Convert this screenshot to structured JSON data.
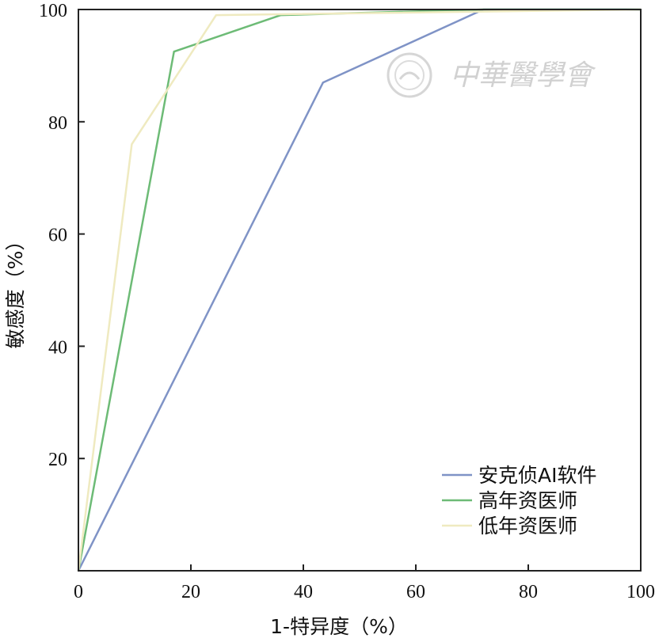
{
  "chart_data": {
    "type": "line",
    "xlabel": "1-特异度（%）",
    "ylabel": "敏感度（%）",
    "xlim": [
      0,
      100
    ],
    "ylim": [
      0,
      100
    ],
    "xticks": [
      "0",
      "20",
      "40",
      "60",
      "80",
      "100"
    ],
    "yticks": [
      "20",
      "40",
      "60",
      "80",
      "100"
    ],
    "grid": false,
    "legend_position": "bottom-right",
    "series": [
      {
        "name": "安克侦AI软件",
        "color": "#7f93c6",
        "x": [
          0,
          43.5,
          72,
          100
        ],
        "y": [
          0,
          87,
          100,
          100
        ]
      },
      {
        "name": "高年资医师",
        "color": "#6dbb76",
        "x": [
          0,
          17,
          36,
          72,
          100
        ],
        "y": [
          0,
          92.5,
          99,
          100,
          100
        ]
      },
      {
        "name": "低年资医师",
        "color": "#efeac0",
        "x": [
          0,
          9.5,
          24.5,
          100
        ],
        "y": [
          0,
          76,
          99,
          100
        ]
      }
    ]
  },
  "watermark": {
    "text": "中華醫學會"
  }
}
